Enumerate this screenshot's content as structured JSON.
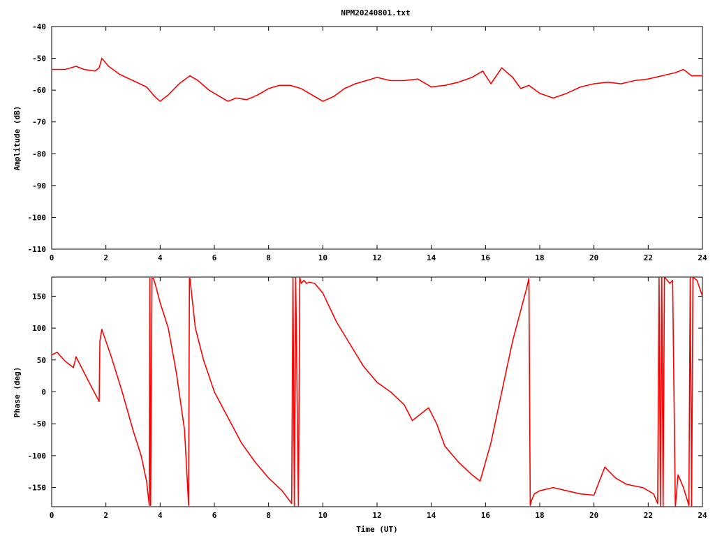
{
  "title": "NPM20240801.txt",
  "chart_data": [
    {
      "type": "line",
      "ylabel": "Amplitude (dB)",
      "xlabel": "",
      "xlim": [
        0,
        24
      ],
      "ylim": [
        -110,
        -40
      ],
      "xticks": [
        "0",
        "2",
        "4",
        "6",
        "8",
        "10",
        "12",
        "14",
        "16",
        "18",
        "20",
        "22",
        "24"
      ],
      "yticks": [
        "-40",
        "-50",
        "-60",
        "-70",
        "-80",
        "-90",
        "-100",
        "-110"
      ],
      "grid": false,
      "color": "#ff0000",
      "series": [
        {
          "x": [
            0,
            0.5,
            0.9,
            1.2,
            1.6,
            1.75,
            1.85,
            2.1,
            2.5,
            3.0,
            3.5,
            3.8,
            4.0,
            4.3,
            4.7,
            5.1,
            5.4,
            5.8,
            6.2,
            6.5,
            6.8,
            7.2,
            7.6,
            8.0,
            8.4,
            8.8,
            9.2,
            9.6,
            10.0,
            10.4,
            10.8,
            11.2,
            11.6,
            12.0,
            12.5,
            13.0,
            13.5,
            14.0,
            14.5,
            15.0,
            15.5,
            15.9,
            16.2,
            16.6,
            17.0,
            17.3,
            17.6,
            18.0,
            18.5,
            19.0,
            19.5,
            20.0,
            20.5,
            21.0,
            21.5,
            22.0,
            22.5,
            23.0,
            23.3,
            23.6,
            24.0
          ],
          "y": [
            -53.5,
            -53.5,
            -52.5,
            -53.5,
            -54,
            -53,
            -50,
            -52.5,
            -55,
            -57,
            -59,
            -62,
            -63.5,
            -61.5,
            -58,
            -55.5,
            -57,
            -60,
            -62,
            -63.5,
            -62.5,
            -63,
            -61.5,
            -59.5,
            -58.5,
            -58.5,
            -59.5,
            -61.5,
            -63.5,
            -62,
            -59.5,
            -58,
            -57,
            -56,
            -57,
            -57,
            -56.5,
            -59,
            -58.5,
            -57.5,
            -56,
            -54,
            -58,
            -53,
            -56,
            -59.5,
            -58.5,
            -61,
            -62.5,
            -61,
            -59,
            -58,
            -57.5,
            -58,
            -57,
            -56.5,
            -55.5,
            -54.5,
            -53.5,
            -55.5,
            -55.5
          ]
        }
      ]
    },
    {
      "type": "line",
      "ylabel": "Phase (deg)",
      "xlabel": "Time (UT)",
      "xlim": [
        0,
        24
      ],
      "ylim": [
        -180,
        180
      ],
      "xticks": [
        "0",
        "2",
        "4",
        "6",
        "8",
        "10",
        "12",
        "14",
        "16",
        "18",
        "20",
        "22",
        "24"
      ],
      "yticks": [
        "150",
        "100",
        "50",
        "0",
        "-50",
        "-100",
        "-150"
      ],
      "ytick_values": [
        150,
        100,
        50,
        0,
        -50,
        -100,
        -150
      ],
      "grid": false,
      "color": "#ff0000",
      "series": [
        {
          "x": [
            0,
            0.2,
            0.5,
            0.8,
            0.9,
            1.2,
            1.5,
            1.75,
            1.78,
            1.85,
            2.2,
            2.6,
            3.0,
            3.3,
            3.5,
            3.6,
            3.62,
            3.65,
            3.7,
            3.75,
            3.8,
            4.0,
            4.3,
            4.6,
            4.9,
            5.05,
            5.08,
            5.1,
            5.3,
            5.6,
            6.0,
            6.5,
            7.0,
            7.5,
            8.0,
            8.5,
            8.85,
            8.9,
            8.95,
            9.0,
            9.1,
            9.15,
            9.2,
            9.3,
            9.4,
            9.5,
            9.7,
            10.0,
            10.5,
            11.0,
            11.5,
            12.0,
            12.5,
            13.0,
            13.3,
            13.6,
            13.9,
            14.2,
            14.5,
            15.0,
            15.5,
            15.8,
            16.2,
            16.6,
            17.0,
            17.5,
            17.6,
            17.65,
            17.7,
            17.8,
            18.0,
            18.5,
            19.0,
            19.5,
            20.0,
            20.2,
            20.4,
            20.8,
            21.2,
            21.8,
            22.2,
            22.35,
            22.4,
            22.45,
            22.5,
            22.55,
            22.6,
            22.7,
            22.8,
            22.9,
            23.0,
            23.1,
            23.3,
            23.5,
            23.55,
            23.6,
            23.65,
            23.7,
            23.8,
            24.0
          ],
          "y": [
            58,
            62,
            48,
            38,
            55,
            30,
            5,
            -15,
            80,
            98,
            55,
            0,
            -60,
            -100,
            -140,
            -178,
            178,
            -178,
            178,
            178,
            172,
            140,
            100,
            30,
            -60,
            -178,
            178,
            178,
            100,
            50,
            0,
            -40,
            -80,
            -110,
            -135,
            -155,
            -175,
            180,
            -180,
            180,
            -180,
            180,
            170,
            175,
            170,
            172,
            170,
            155,
            110,
            75,
            40,
            15,
            0,
            -20,
            -45,
            -35,
            -25,
            -50,
            -85,
            -110,
            -130,
            -140,
            -80,
            0,
            80,
            160,
            178,
            -178,
            -170,
            -160,
            -155,
            -150,
            -155,
            -160,
            -162,
            -140,
            -118,
            -135,
            -145,
            -150,
            -160,
            -175,
            180,
            -180,
            180,
            -180,
            180,
            175,
            170,
            175,
            -180,
            -130,
            -150,
            -178,
            180,
            -180,
            180,
            178,
            175,
            150
          ]
        }
      ]
    }
  ]
}
